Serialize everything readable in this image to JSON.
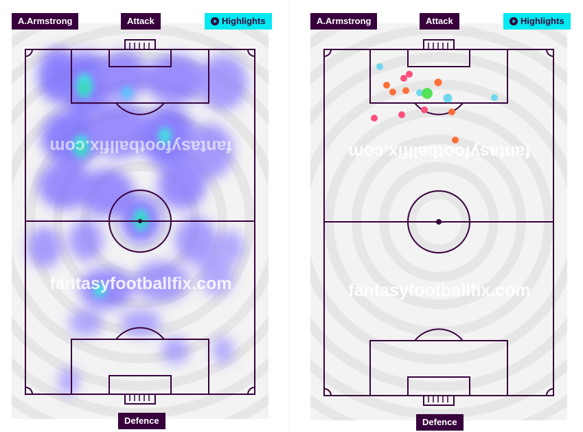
{
  "panels": [
    {
      "player": "A.Armstrong",
      "top_label": "Attack",
      "bottom_label": "Defence",
      "highlights": "Highlights",
      "watermark": "fantasyfootballfix.com",
      "view": "heatmap"
    },
    {
      "player": "A.Armstrong",
      "top_label": "Attack",
      "bottom_label": "Defence",
      "highlights": "Highlights",
      "watermark": "fantasyfootballfix.com",
      "view": "shot-map"
    }
  ],
  "colors": {
    "brand_purple": "#37003c",
    "highlight_cyan": "#00e9f0",
    "pitch_bg": "#f3f3f3",
    "pitch_rings": "#e6e6e6",
    "shot_on_target": "#ff6f3c",
    "shot_off_target": "#ff4f7b",
    "shot_blocked": "#6fd8f0",
    "goal": "#53e35a"
  },
  "icons": {
    "highlights": "play-circle-icon"
  }
}
